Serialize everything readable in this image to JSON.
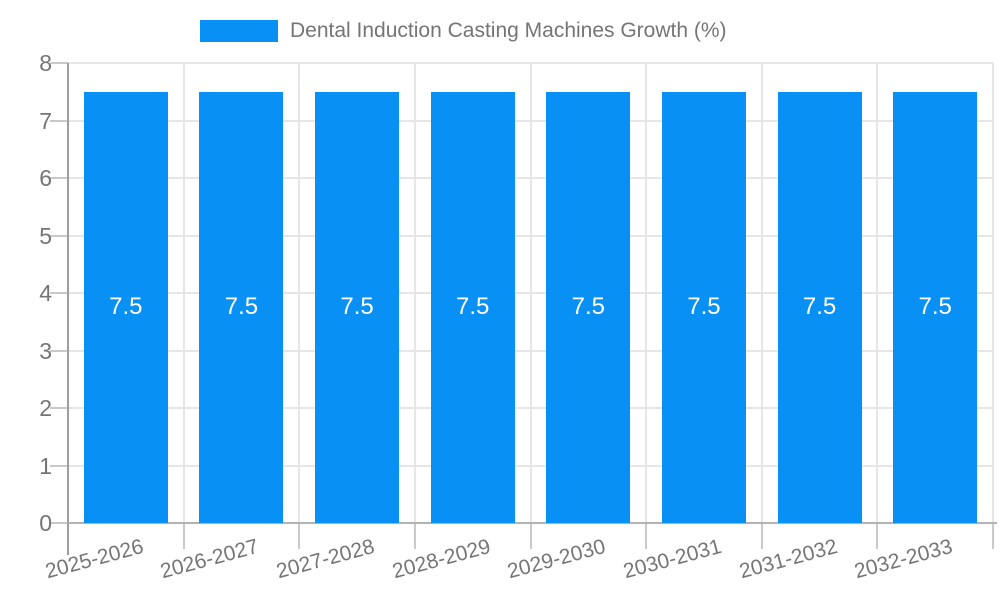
{
  "legend": {
    "label": "Dental Induction Casting Machines Growth (%)"
  },
  "chart_data": {
    "type": "bar",
    "title": "Dental Induction Casting Machines Growth (%)",
    "categories": [
      "2025-2026",
      "2026-2027",
      "2027-2028",
      "2028-2029",
      "2029-2030",
      "2030-2031",
      "2031-2032",
      "2032-2033"
    ],
    "values": [
      7.5,
      7.5,
      7.5,
      7.5,
      7.5,
      7.5,
      7.5,
      7.5
    ],
    "value_labels": [
      "7.5",
      "7.5",
      "7.5",
      "7.5",
      "7.5",
      "7.5",
      "7.5",
      "7.5"
    ],
    "xlabel": "",
    "ylabel": "",
    "ylim": [
      0,
      8
    ],
    "yticks": [
      0,
      1,
      2,
      3,
      4,
      5,
      6,
      7,
      8
    ],
    "grid": true,
    "legend_position": "top-center",
    "colors": {
      "bar": "#0990f5",
      "grid": "#e6e6e6",
      "axis_line": "#9e9e9e",
      "baseline": "#b3b3b3",
      "tick": "#c9c9c9",
      "axis_text": "#757575",
      "value_label": "#ffffff",
      "background": "#ffffff"
    }
  }
}
